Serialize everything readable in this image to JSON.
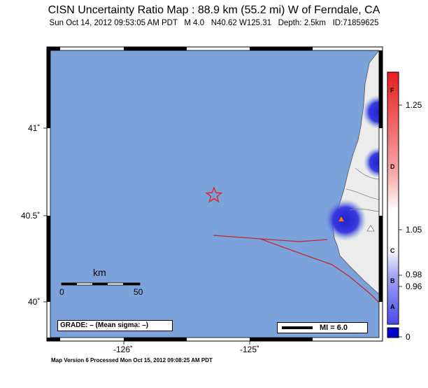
{
  "header": {
    "title": "CISN Uncertainty Ratio Map : 88.9 km (55.2 mi) W of Ferndale, CA",
    "subtitle": "Sun Oct 14, 2012 09:53:05 AM PDT   M 4.0   N40.62 W125.31   Depth: 2.5km   ID:71859625"
  },
  "map": {
    "lat_labels": [
      "41˚",
      "40.5˚",
      "40˚"
    ],
    "lon_labels": [
      "-126˚",
      "-125˚"
    ],
    "scale_bar": {
      "unit": "km",
      "start": "0",
      "end": "50"
    },
    "grade_box": "GRADE: – (Mean sigma: –)",
    "mi_legend": "MI = 6.0",
    "colors": {
      "ocean": "#7ba2db",
      "land": "#ececec",
      "fault": "#c0282d",
      "epicenter": "#dd2a2a"
    },
    "icons": [
      "epicenter-star-icon",
      "station-triangle-icon"
    ]
  },
  "colorbar": {
    "letters": [
      "F",
      "D",
      "C",
      "B",
      "A"
    ],
    "values": [
      "1.25",
      "1.05",
      "0.98",
      "0.96",
      "0"
    ]
  },
  "footer": "Map Version 6 Processed Mon Oct 15, 2012 09:08:25 AM PDT"
}
